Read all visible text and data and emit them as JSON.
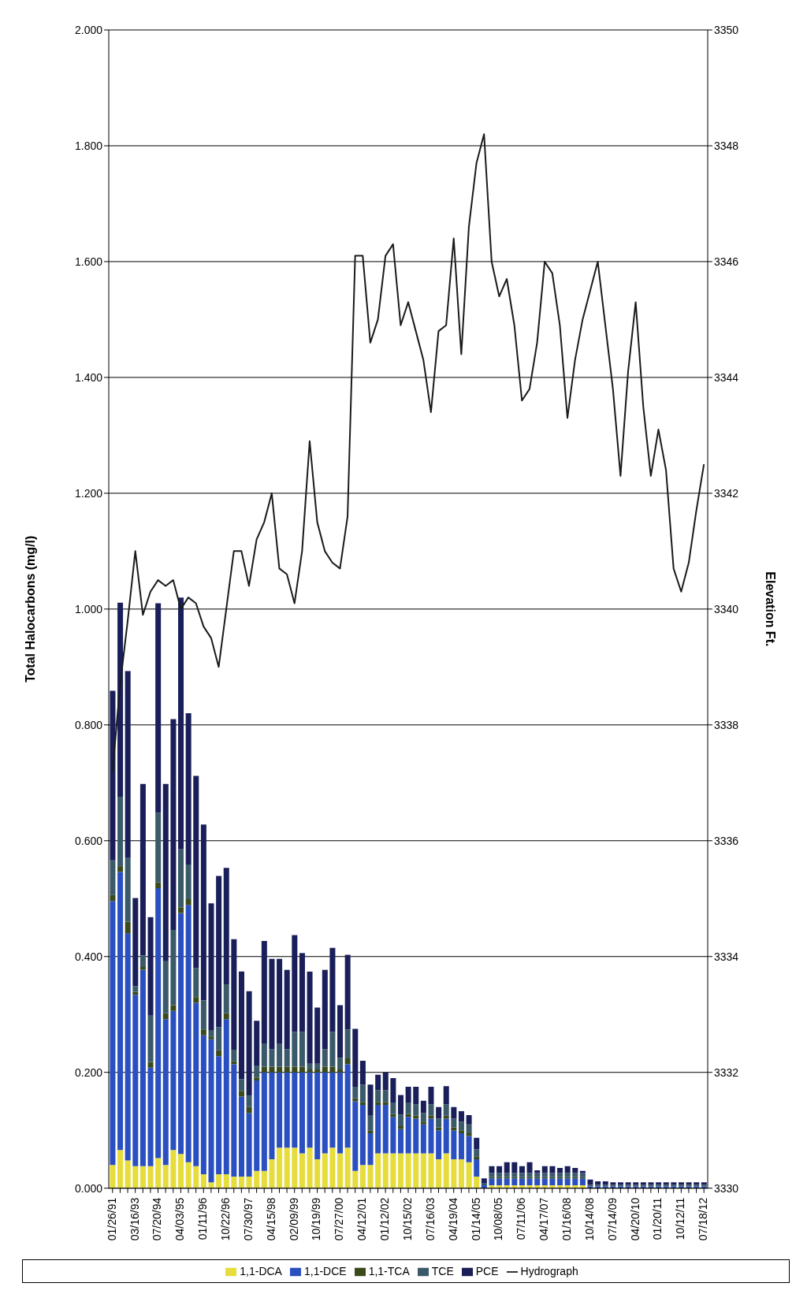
{
  "chart_data": {
    "type": "bar",
    "stacked": true,
    "ylabel": "Total Halocarbons (mg/l)",
    "y2label": "Elevation Ft.",
    "categories": [
      "01/26/91",
      null,
      null,
      "03/16/93",
      null,
      null,
      "07/20/94",
      null,
      null,
      "04/03/95",
      null,
      null,
      "01/11/96",
      null,
      null,
      "10/22/96",
      null,
      null,
      "07/30/97",
      null,
      null,
      "04/15/98",
      null,
      null,
      "02/09/99",
      null,
      null,
      "10/19/99",
      null,
      null,
      "07/27/00",
      null,
      null,
      "04/12/01",
      null,
      null,
      "01/12/02",
      null,
      null,
      "10/15/02",
      null,
      null,
      "07/16/03",
      null,
      null,
      "04/19/04",
      null,
      null,
      "01/14/05",
      null,
      null,
      "10/08/05",
      null,
      null,
      "07/11/06",
      null,
      null,
      "04/17/07",
      null,
      null,
      "01/16/08",
      null,
      null,
      "10/14/08",
      null,
      null,
      "07/14/09",
      null,
      null,
      "04/20/10",
      null,
      null,
      "01/20/11",
      null,
      null,
      "10/12/11",
      null,
      null,
      "07/18/12"
    ],
    "series": [
      {
        "name": "1,1-DCA",
        "color": "#e6dc3c",
        "values": [
          0.04,
          0.066,
          0.048,
          0.038,
          0.038,
          0.038,
          0.052,
          0.04,
          0.066,
          0.059,
          0.045,
          0.038,
          0.024,
          0.01,
          0.024,
          0.024,
          0.02,
          0.02,
          0.02,
          0.03,
          0.03,
          0.05,
          0.07,
          0.07,
          0.07,
          0.06,
          0.07,
          0.05,
          0.06,
          0.07,
          0.06,
          0.07,
          0.03,
          0.04,
          0.04,
          0.06,
          0.06,
          0.06,
          0.06,
          0.06,
          0.06,
          0.06,
          0.06,
          0.05,
          0.06,
          0.05,
          0.05,
          0.045,
          0.02,
          0,
          0.005,
          0.005,
          0.005,
          0.005,
          0.005,
          0.005,
          0.005,
          0.005,
          0.005,
          0.005,
          0.005,
          0.005,
          0.005,
          0,
          0,
          0,
          0,
          0,
          0,
          0,
          0,
          0,
          0,
          0,
          0,
          0,
          0,
          0,
          0
        ]
      },
      {
        "name": "1,1-DCE",
        "color": "#2a4fc0",
        "values": [
          0.456,
          0.48,
          0.392,
          0.296,
          0.339,
          0.17,
          0.466,
          0.252,
          0.24,
          0.416,
          0.444,
          0.282,
          0.24,
          0.247,
          0.204,
          0.268,
          0.194,
          0.138,
          0.11,
          0.156,
          0.17,
          0.15,
          0.13,
          0.13,
          0.13,
          0.14,
          0.13,
          0.15,
          0.14,
          0.13,
          0.14,
          0.144,
          0.12,
          0.104,
          0.055,
          0.084,
          0.084,
          0.063,
          0.042,
          0.063,
          0.06,
          0.05,
          0.06,
          0.05,
          0.06,
          0.05,
          0.045,
          0.045,
          0.03,
          0.005,
          0.012,
          0.012,
          0.012,
          0.012,
          0.012,
          0.012,
          0.012,
          0.012,
          0.012,
          0.012,
          0.012,
          0.012,
          0.012,
          0.003,
          0.003,
          0.003,
          0.003,
          0.003,
          0.003,
          0.003,
          0.003,
          0.003,
          0.003,
          0.003,
          0.003,
          0.003,
          0.003,
          0.003,
          0.003
        ]
      },
      {
        "name": "1,1-TCA",
        "color": "#3a4a1a",
        "values": [
          0.01,
          0.01,
          0.02,
          0.005,
          0.005,
          0.01,
          0.01,
          0.01,
          0.01,
          0.01,
          0.01,
          0.01,
          0.01,
          0.005,
          0.01,
          0.01,
          0.005,
          0.01,
          0.01,
          0.005,
          0.01,
          0.01,
          0.01,
          0.01,
          0.01,
          0.01,
          0.005,
          0.005,
          0.01,
          0.01,
          0.005,
          0.01,
          0.005,
          0.005,
          0.005,
          0.005,
          0.005,
          0.005,
          0.005,
          0.005,
          0.005,
          0.005,
          0.005,
          0.005,
          0.005,
          0.005,
          0.005,
          0.005,
          0.005,
          0,
          0.002,
          0.002,
          0.002,
          0.002,
          0.002,
          0.002,
          0.002,
          0.002,
          0.002,
          0.002,
          0.002,
          0.002,
          0.002,
          0,
          0,
          0,
          0,
          0,
          0,
          0,
          0,
          0,
          0,
          0,
          0,
          0,
          0,
          0,
          0
        ]
      },
      {
        "name": "TCE",
        "color": "#3a5a6a",
        "values": [
          0.06,
          0.12,
          0.11,
          0.01,
          0.02,
          0.08,
          0.12,
          0.09,
          0.13,
          0.1,
          0.06,
          0.05,
          0.05,
          0.01,
          0.04,
          0.05,
          0.02,
          0.02,
          0.02,
          0.02,
          0.04,
          0.03,
          0.04,
          0.03,
          0.06,
          0.06,
          0.01,
          0.01,
          0.03,
          0.06,
          0.02,
          0.05,
          0.02,
          0.03,
          0.025,
          0.02,
          0.02,
          0.02,
          0.02,
          0.02,
          0.02,
          0.015,
          0.02,
          0.015,
          0.02,
          0.015,
          0.015,
          0.015,
          0.012,
          0.004,
          0.007,
          0.007,
          0.007,
          0.007,
          0.007,
          0.007,
          0.007,
          0.007,
          0.007,
          0.007,
          0.007,
          0.007,
          0.007,
          0.003,
          0.003,
          0.003,
          0.003,
          0.003,
          0.003,
          0.003,
          0.003,
          0.003,
          0.003,
          0.003,
          0.003,
          0.003,
          0.003,
          0.003,
          0.003
        ]
      },
      {
        "name": "PCE",
        "color": "#1a1f5a",
        "values": [
          0.293,
          0.335,
          0.323,
          0.152,
          0.296,
          0.17,
          0.362,
          0.306,
          0.364,
          0.435,
          0.261,
          0.332,
          0.304,
          0.22,
          0.261,
          0.201,
          0.191,
          0.186,
          0.18,
          0.078,
          0.177,
          0.156,
          0.146,
          0.137,
          0.167,
          0.136,
          0.159,
          0.097,
          0.137,
          0.145,
          0.091,
          0.129,
          0.1,
          0.041,
          0.054,
          0.027,
          0.031,
          0.042,
          0.034,
          0.027,
          0.03,
          0.021,
          0.03,
          0.02,
          0.031,
          0.02,
          0.018,
          0.016,
          0.02,
          0.008,
          0.012,
          0.012,
          0.019,
          0.019,
          0.012,
          0.019,
          0.005,
          0.012,
          0.012,
          0.009,
          0.012,
          0.009,
          0.004,
          0.009,
          0.006,
          0.006,
          0.004,
          0.004,
          0.004,
          0.004,
          0.004,
          0.004,
          0.004,
          0.004,
          0.004,
          0.004,
          0.004,
          0.004,
          0.004
        ]
      },
      {
        "name": "Hydrograph",
        "type": "line",
        "axis": "y2",
        "color": "#1a1a1a",
        "values": [
          3337.2,
          3338.7,
          3339.8,
          3341.0,
          3339.9,
          3340.3,
          3340.5,
          3340.4,
          3340.5,
          3340.0,
          3340.2,
          3340.1,
          3339.7,
          3339.5,
          3339.0,
          3340.0,
          3341.0,
          3341.0,
          3340.4,
          3341.2,
          3341.5,
          3342.0,
          3340.7,
          3340.6,
          3340.1,
          3341.0,
          3342.9,
          3341.5,
          3341.0,
          3340.8,
          3340.7,
          3341.6,
          3346.1,
          3346.1,
          3344.6,
          3345.0,
          3346.1,
          3346.3,
          3344.9,
          3345.3,
          3344.8,
          3344.3,
          3343.4,
          3344.8,
          3344.9,
          3346.4,
          3344.4,
          3346.6,
          3347.7,
          3348.2,
          3346.0,
          3345.4,
          3345.7,
          3344.9,
          3343.6,
          3343.8,
          3344.6,
          3346.0,
          3345.8,
          3344.9,
          3343.3,
          3344.3,
          3345.0,
          3345.5,
          3346.0,
          3344.9,
          3343.8,
          3342.3,
          3344.1,
          3345.3,
          3343.5,
          3342.3,
          3343.1,
          3342.4,
          3340.7,
          3340.3,
          3340.8,
          3341.7,
          3342.5
        ]
      }
    ],
    "ylim": [
      0,
      2
    ],
    "yticks": [
      {
        "value": 0,
        "label": "0.000"
      },
      {
        "value": 0.2,
        "label": "0.200"
      },
      {
        "value": 0.4,
        "label": "0.400"
      },
      {
        "value": 0.6,
        "label": "0.600"
      },
      {
        "value": 0.8,
        "label": "0.800"
      },
      {
        "value": 1,
        "label": "1.000"
      },
      {
        "value": 1.2,
        "label": "1.200"
      },
      {
        "value": 1.4,
        "label": "1.400"
      },
      {
        "value": 1.6,
        "label": "1.600"
      },
      {
        "value": 1.8,
        "label": "1.800"
      },
      {
        "value": 2,
        "label": "2.000"
      }
    ],
    "y2lim": [
      3330,
      3350
    ],
    "y2ticks": [
      3330,
      3332,
      3334,
      3336,
      3338,
      3340,
      3342,
      3344,
      3346,
      3348,
      3350
    ],
    "grid": "y",
    "legend": "bottom",
    "marker": "none",
    "line_style": "solid"
  }
}
